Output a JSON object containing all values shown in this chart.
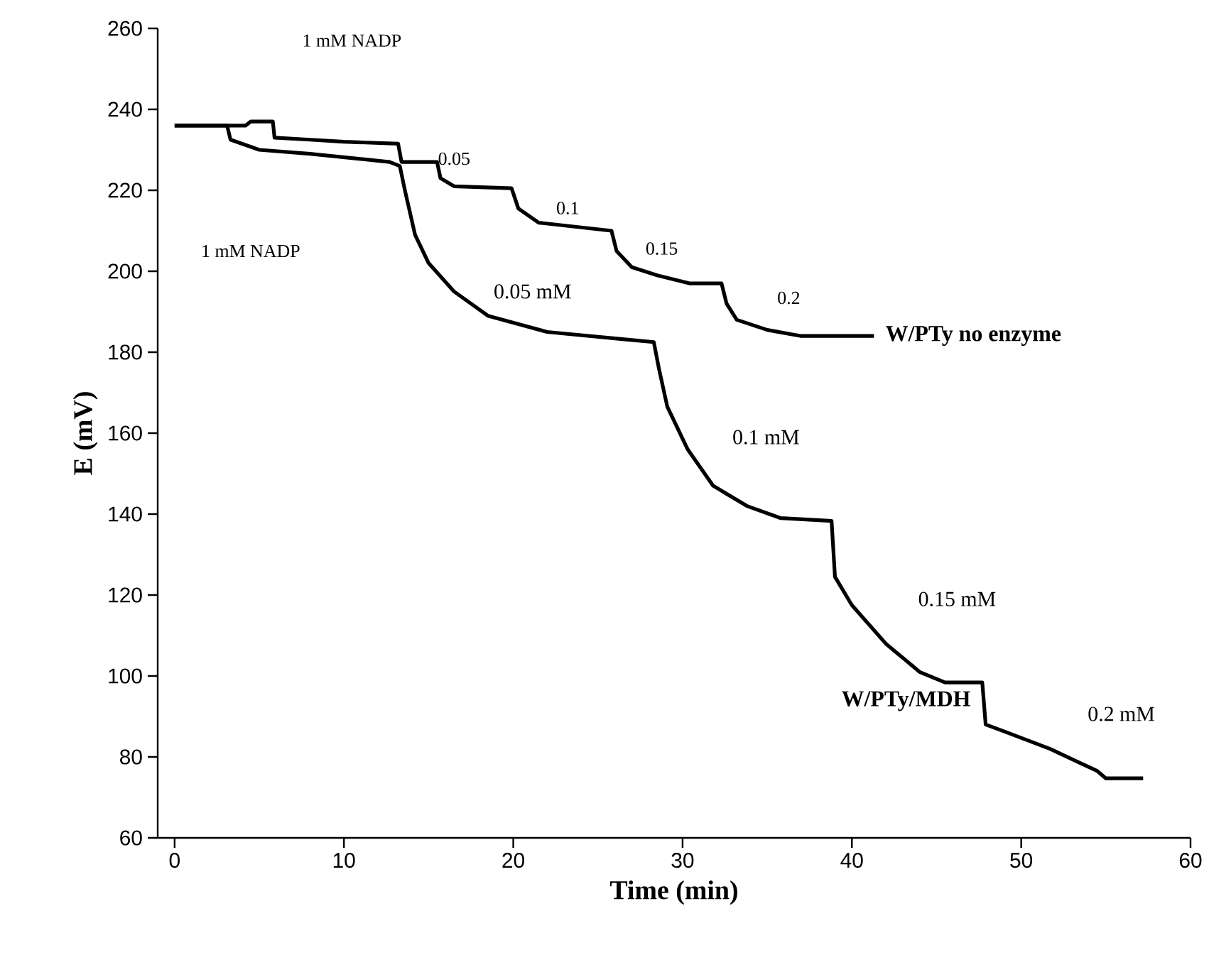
{
  "chart_data": {
    "type": "line",
    "xlabel": "Time (min)",
    "ylabel": "E (mV)",
    "xlim": [
      -1,
      60
    ],
    "ylim": [
      60,
      260
    ],
    "xticks": [
      0,
      10,
      20,
      30,
      40,
      50,
      60
    ],
    "yticks": [
      60,
      80,
      100,
      120,
      140,
      160,
      180,
      200,
      220,
      240,
      260
    ],
    "grid": false,
    "legend": false,
    "marker": "none",
    "line_style": "solid",
    "series": [
      {
        "name": "W/PTy no enzyme",
        "color": "#000000",
        "x": [
          0,
          4.2,
          4.5,
          5.8,
          5.9,
          8,
          10,
          13.2,
          13.4,
          15.5,
          15.7,
          16.5,
          19.9,
          20.3,
          21.5,
          25.8,
          26.1,
          27,
          28.5,
          30.4,
          32.3,
          32.6,
          33.2,
          35,
          37,
          41.3
        ],
        "values": [
          236,
          236,
          237,
          237,
          233,
          232.5,
          232,
          231.5,
          227,
          227,
          223,
          221,
          220.5,
          215.5,
          212,
          210,
          205,
          201,
          199,
          197,
          197,
          192,
          188,
          185.5,
          184,
          184
        ]
      },
      {
        "name": "W/PTy/MDH",
        "color": "#000000",
        "x": [
          0,
          3.1,
          3.3,
          5,
          8,
          12.7,
          13.3,
          13.6,
          14.2,
          15,
          16.5,
          18.5,
          22,
          27,
          28.3,
          28.6,
          29.1,
          30.3,
          31.8,
          33.8,
          35.8,
          38.8,
          39,
          40,
          42,
          44,
          45.5,
          47.7,
          47.9,
          49,
          51.7,
          54.5,
          55,
          57.2
        ],
        "values": [
          236,
          236,
          232.5,
          230,
          229,
          227,
          226,
          220,
          209,
          202,
          195,
          189,
          185,
          183,
          182.5,
          176,
          166.5,
          156,
          147,
          142,
          139,
          138.3,
          124.5,
          117.5,
          108,
          101,
          98.4,
          98.4,
          88,
          86.3,
          82,
          76.5,
          74.7,
          74.7
        ]
      }
    ],
    "annotations": [
      "1 mM NADP",
      "1 mM NADP",
      "0.05",
      "0.1",
      "0.15",
      "0.2",
      "0.05 mM",
      "0.1 mM",
      "0.15 mM",
      "0.2 mM"
    ]
  }
}
